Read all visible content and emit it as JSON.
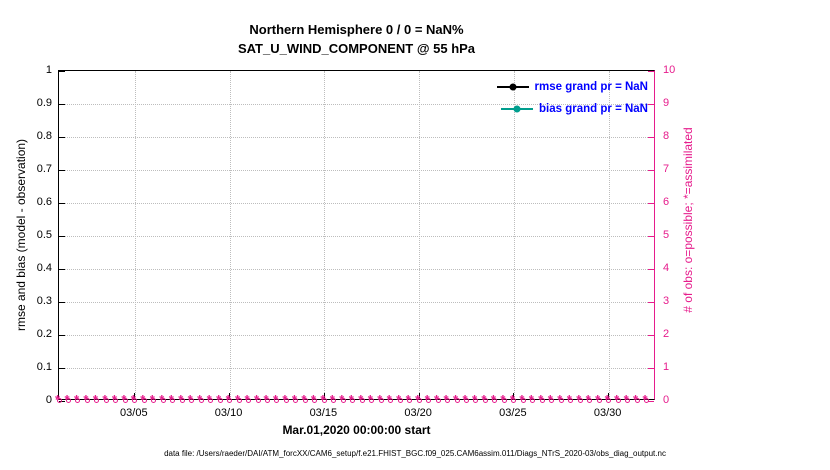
{
  "figure": {
    "caption": "data file: /Users/raeder/DAI/ATM_forcXX/CAM6_setup/f.e21.FHIST_BGC.f09_025.CAM6assim.011/Diags_NTrS_2020-03/obs_diag_output.nc"
  },
  "chart_data": {
    "type": "line",
    "title": "Northern Hemisphere 0 / 0 = NaN%",
    "subtitle": "SAT_U_WIND_COMPONENT @ 55 hPa",
    "xlabel": "Mar.01,2020 00:00:00 start",
    "ylabel_left": "rmse and bias (model - observation)",
    "ylabel_right": "# of obs: o=possible; *=assimilated",
    "x_domain_days": 31.5,
    "x_start_date": "03/01",
    "x_ticks": [
      {
        "day": 4,
        "label": "03/05"
      },
      {
        "day": 9,
        "label": "03/10"
      },
      {
        "day": 14,
        "label": "03/15"
      },
      {
        "day": 19,
        "label": "03/20"
      },
      {
        "day": 24,
        "label": "03/25"
      },
      {
        "day": 29,
        "label": "03/30"
      }
    ],
    "y_left": {
      "min": 0,
      "max": 1,
      "tick_labels": [
        "0",
        "0.1",
        "0.2",
        "0.3",
        "0.4",
        "0.5",
        "0.6",
        "0.7",
        "0.8",
        "0.9",
        "1"
      ]
    },
    "y_right": {
      "min": 0,
      "max": 10,
      "tick_labels": [
        "0",
        "1",
        "2",
        "3",
        "4",
        "5",
        "6",
        "7",
        "8",
        "9",
        "10"
      ],
      "color": "#e61c8c"
    },
    "grid": true,
    "legend_position": "top-right",
    "legend_text_color": "#0000ff",
    "series": [
      {
        "name": "rmse",
        "legend": "rmse grand pr = NaN",
        "grand_prior": "NaN",
        "color": "#000000",
        "values": []
      },
      {
        "name": "bias",
        "legend": "bias grand pr = NaN",
        "grand_prior": "NaN",
        "color": "#009e8e",
        "values": []
      }
    ],
    "obs_counts": {
      "marker_possible": "o",
      "marker_assimilated": "*",
      "start_day": 0,
      "end_day": 31,
      "step_days": 0.5,
      "possible_per_time": 0,
      "assimilated_per_time": 0
    }
  }
}
